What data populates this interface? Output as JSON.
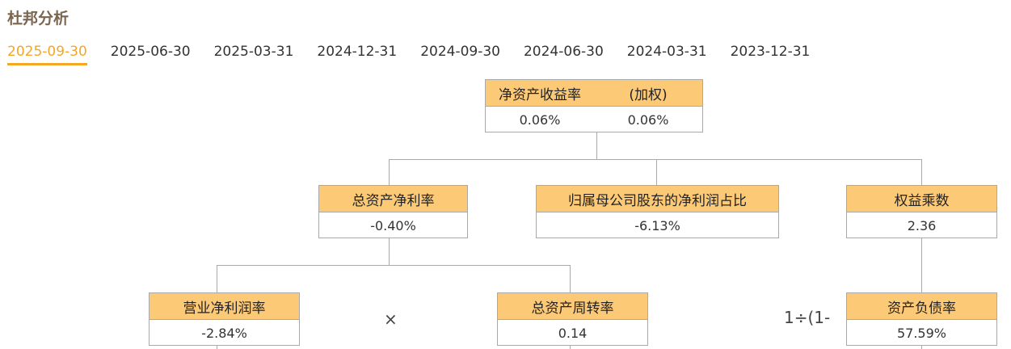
{
  "title": "杜邦分析",
  "tabs": [
    "2025-09-30",
    "2025-06-30",
    "2025-03-31",
    "2024-12-31",
    "2024-09-30",
    "2024-06-30",
    "2024-03-31",
    "2023-12-31"
  ],
  "active_tab": "2025-09-30",
  "roe": {
    "label": "净资产收益率",
    "label2": "(加权)",
    "value": "0.06%",
    "value2": "0.06%"
  },
  "roa": {
    "label": "总资产净利率",
    "value": "-0.40%"
  },
  "parent_share": {
    "label": "归属母公司股东的净利润占比",
    "value": "-6.13%"
  },
  "equity_multiplier": {
    "label": "权益乘数",
    "value": "2.36"
  },
  "net_margin": {
    "label": "营业净利润率",
    "value": "-2.84%"
  },
  "asset_turnover": {
    "label": "总资产周转率",
    "value": "0.14"
  },
  "debt_ratio": {
    "label": "资产负债率",
    "value": "57.59%"
  },
  "ops": {
    "multiply": "×",
    "formula": "1÷(1-"
  },
  "colors": {
    "accent": "#f5a623",
    "box_header": "#fcc977",
    "title": "#7a6650"
  }
}
